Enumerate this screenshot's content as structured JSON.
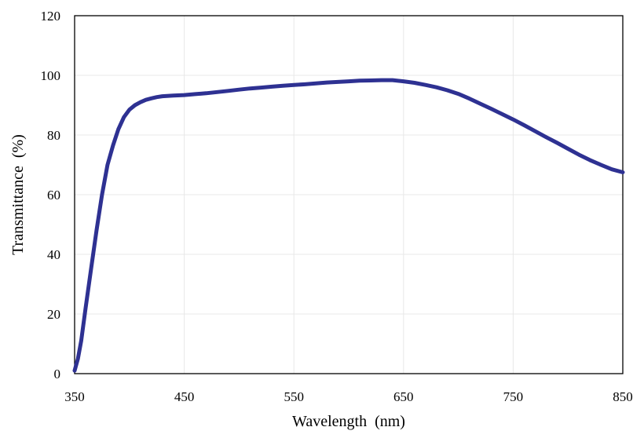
{
  "chart_data": {
    "type": "line",
    "title": "",
    "xlabel": "Wavelength  (nm)",
    "ylabel": "Transmittance  (%)",
    "xlim": [
      350,
      850
    ],
    "ylim": [
      0,
      120
    ],
    "x_ticks": [
      350,
      450,
      550,
      650,
      750,
      850
    ],
    "y_ticks": [
      0,
      20,
      40,
      60,
      80,
      100,
      120
    ],
    "grid": "on (light gray, both axes)",
    "legend": "none",
    "line_color": "#2E3192",
    "series": [
      {
        "x": [
          350,
          353,
          356,
          360,
          365,
          370,
          375,
          380,
          385,
          390,
          395,
          400,
          405,
          410,
          415,
          420,
          425,
          430,
          440,
          450,
          460,
          470,
          480,
          490,
          500,
          510,
          520,
          530,
          540,
          550,
          560,
          570,
          580,
          590,
          600,
          610,
          620,
          630,
          640,
          650,
          660,
          670,
          680,
          690,
          700,
          710,
          720,
          730,
          740,
          750,
          760,
          770,
          780,
          790,
          800,
          810,
          820,
          830,
          840,
          850
        ],
        "y": [
          1,
          5,
          11,
          22,
          35,
          48,
          60,
          70,
          76.5,
          82,
          86,
          88.5,
          90,
          91,
          91.8,
          92.3,
          92.7,
          93,
          93.2,
          93.4,
          93.7,
          94,
          94.4,
          94.8,
          95.2,
          95.6,
          95.9,
          96.2,
          96.5,
          96.8,
          97,
          97.3,
          97.6,
          97.8,
          98,
          98.2,
          98.3,
          98.4,
          98.4,
          98,
          97.5,
          96.8,
          96,
          95,
          93.8,
          92.2,
          90.5,
          88.8,
          87,
          85.2,
          83.3,
          81.3,
          79.3,
          77.4,
          75.4,
          73.4,
          71.6,
          70,
          68.5,
          67.5
        ]
      }
    ]
  }
}
